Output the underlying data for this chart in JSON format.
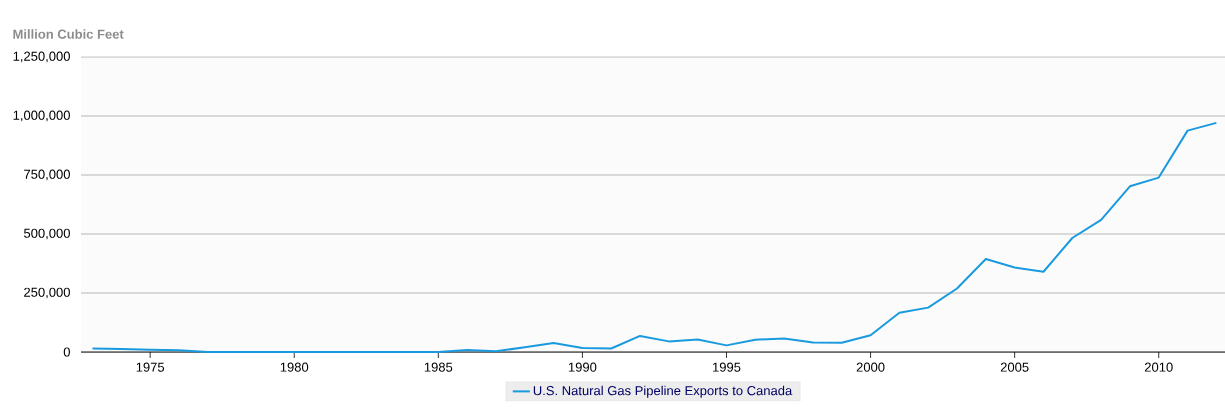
{
  "chart_data": {
    "type": "line",
    "ylabel": "Million Cubic Feet",
    "x": [
      1973,
      1974,
      1975,
      1976,
      1977,
      1978,
      1979,
      1980,
      1981,
      1982,
      1983,
      1984,
      1985,
      1986,
      1987,
      1988,
      1989,
      1990,
      1991,
      1992,
      1993,
      1994,
      1995,
      1996,
      1997,
      1998,
      1999,
      2000,
      2001,
      2002,
      2003,
      2004,
      2005,
      2006,
      2007,
      2008,
      2009,
      2010,
      2011,
      2012
    ],
    "series": [
      {
        "name": "U.S. Natural Gas Pipeline Exports to Canada",
        "color": "#1a9ade",
        "values": [
          15000,
          13000,
          10000,
          7000,
          0,
          0,
          0,
          0,
          0,
          0,
          0,
          0,
          0,
          8000,
          3000,
          20000,
          38000,
          17000,
          15000,
          68000,
          45000,
          53000,
          28000,
          52000,
          57000,
          40000,
          39000,
          71000,
          166000,
          188000,
          269000,
          394000,
          358000,
          340000,
          483000,
          560000,
          702000,
          739000,
          938000,
          971000
        ]
      }
    ],
    "xlim": [
      1972.6,
      2012.3
    ],
    "ylim": [
      0,
      1250000
    ],
    "xticks": [
      1975,
      1980,
      1985,
      1990,
      1995,
      2000,
      2005,
      2010
    ],
    "yticks": [
      0,
      {
        "value": 250000,
        "label": "250,000"
      },
      {
        "value": 500000,
        "label": "500,000"
      },
      {
        "value": 750000,
        "label": "750,000"
      },
      {
        "value": 1000000,
        "label": "1,000,000"
      },
      {
        "value": 1250000,
        "label": "1,250,000"
      }
    ],
    "grid": "y",
    "legend": "bottom",
    "marker": "none",
    "line_style": "solid"
  }
}
